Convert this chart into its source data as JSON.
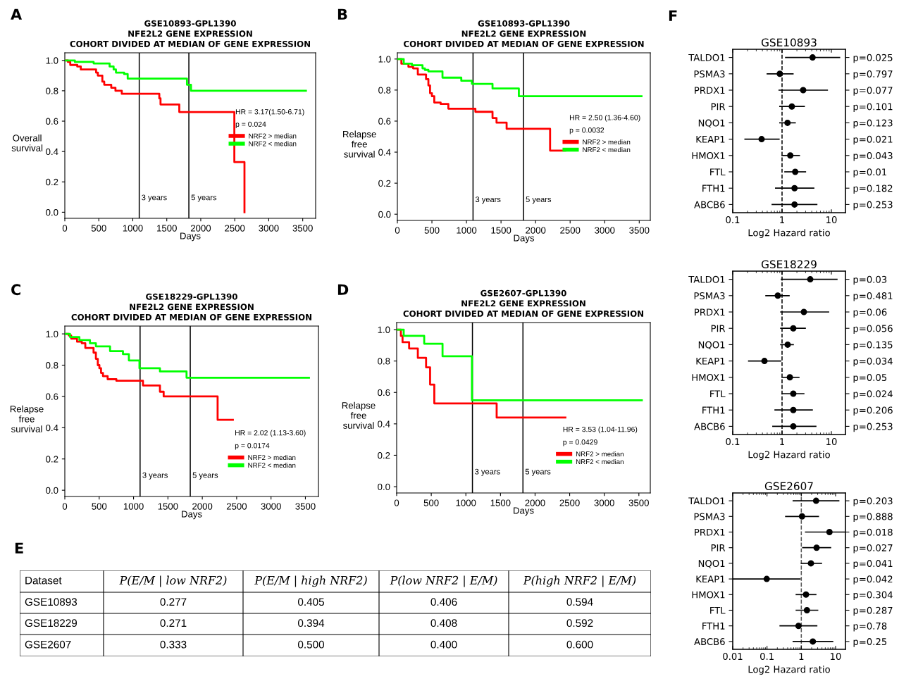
{
  "chart_data": [
    {
      "type": "step",
      "title": "GSE10893-GPL1390\nNFE2L2 GENE EXPRESSION\nCOHORT DIVIDED AT MEDIAN OF GENE EXPRESSION",
      "xlabel": "Days",
      "ylabel": "Overall\nsurvival",
      "annotations": [
        "A",
        "HR = 3.17(1.50-6.71)",
        "p = 0.024"
      ],
      "series": [
        {
          "name": "NRF2 > median",
          "color": "#ff0000",
          "x": [
            0,
            45,
            80,
            183,
            235,
            460,
            486,
            552,
            580,
            683,
            745,
            838,
            1390,
            1408,
            1684,
            2494,
            2643
          ],
          "values": [
            1.0,
            0.99,
            0.97,
            0.96,
            0.94,
            0.92,
            0.9,
            0.86,
            0.84,
            0.82,
            0.8,
            0.78,
            0.75,
            0.71,
            0.66,
            0.33,
            0.0
          ]
        },
        {
          "name": "NRF2 < median",
          "color": "#00ff00",
          "x": [
            0,
            148,
            424,
            659,
            718,
            752,
            873,
            925,
            1797,
            1856,
            3547
          ],
          "values": [
            1.0,
            0.99,
            0.98,
            0.96,
            0.94,
            0.92,
            0.91,
            0.88,
            0.84,
            0.8,
            0.8
          ]
        }
      ],
      "xlim": [
        0,
        3690
      ],
      "xticks": [
        0,
        500,
        1000,
        1500,
        2000,
        2500,
        3000,
        3500
      ],
      "ylim": [
        -0.04,
        1.05
      ],
      "yticks": [
        {
          "value": 0,
          "label": "0.0"
        },
        {
          "value": 0.2,
          "label": "0.2"
        },
        {
          "value": 0.4,
          "label": "0.4"
        },
        {
          "value": 0.6,
          "label": "0.6"
        },
        {
          "value": 0.8,
          "label": "0.8"
        },
        {
          "value": 1,
          "label": "1.0"
        }
      ],
      "ref_lines": [
        {
          "axis": "x",
          "value": 1095,
          "label": "3 years",
          "color": "#000000"
        },
        {
          "axis": "x",
          "value": 1825,
          "label": "5 years",
          "color": "#000000"
        }
      ],
      "legend": "right",
      "grid": false
    },
    {
      "type": "step",
      "title": "GSE10893-GPL1390\nNFE2L2 GENE EXPRESSION\nCOHORT DIVIDED AT MEDIAN OF GENE EXPRESSION",
      "xlabel": "Days",
      "ylabel": "Relapse\nfree\nsurvival",
      "annotations": [
        "B",
        "HR = 2.50 (1.36-4.60)",
        "p = 0.0032"
      ],
      "series": [
        {
          "name": "NRF2 > median",
          "color": "#ff0000",
          "x": [
            0,
            58,
            160,
            228,
            296,
            415,
            449,
            473,
            500,
            534,
            626,
            738,
            1129,
            1377,
            1435,
            1581,
            2210,
            2428
          ],
          "values": [
            1.0,
            0.97,
            0.95,
            0.94,
            0.9,
            0.87,
            0.83,
            0.78,
            0.76,
            0.72,
            0.71,
            0.68,
            0.66,
            0.62,
            0.59,
            0.55,
            0.41,
            0.41
          ]
        },
        {
          "name": "NRF2 < median",
          "color": "#00ff00",
          "x": [
            0,
            92,
            211,
            364,
            398,
            449,
            653,
            925,
            1078,
            1377,
            1758,
            3533
          ],
          "values": [
            1.0,
            0.97,
            0.96,
            0.94,
            0.93,
            0.92,
            0.88,
            0.86,
            0.84,
            0.81,
            0.76,
            0.76
          ]
        }
      ],
      "xlim": [
        0,
        3660
      ],
      "xticks": [
        0,
        500,
        1000,
        1500,
        2000,
        2500,
        3000,
        3500
      ],
      "ylim": [
        -0.04,
        1.04
      ],
      "yticks": [
        {
          "value": 0,
          "label": "0.0"
        },
        {
          "value": 0.2,
          "label": "0.2"
        },
        {
          "value": 0.4,
          "label": "0.4"
        },
        {
          "value": 0.6,
          "label": "0.6"
        },
        {
          "value": 0.8,
          "label": "0.8"
        },
        {
          "value": 1,
          "label": "1.0"
        }
      ],
      "ref_lines": [
        {
          "axis": "x",
          "value": 1095,
          "label": "3 years",
          "color": "#000000"
        },
        {
          "axis": "x",
          "value": 1825,
          "label": "5 years",
          "color": "#000000"
        }
      ],
      "legend": "right",
      "grid": false
    },
    {
      "type": "step",
      "title": "GSE18229-GPL1390\nNFE2L2 GENE EXPRESSION\nCOHORT DIVIDED AT MEDIAN OF GENE EXPRESSION",
      "xlabel": "Days",
      "ylabel": "Relapse\nfree\nsurvival",
      "annotations": [
        "C",
        "HR = 2.02 (1.13-3.60)",
        "p = 0.0174"
      ],
      "series": [
        {
          "name": "NRF2 > median",
          "color": "#ff0000",
          "x": [
            0,
            58,
            92,
            178,
            247,
            298,
            418,
            452,
            480,
            503,
            527,
            555,
            623,
            750,
            1137,
            1384,
            1438,
            2223,
            2445
          ],
          "values": [
            1.0,
            0.99,
            0.97,
            0.95,
            0.94,
            0.91,
            0.88,
            0.84,
            0.8,
            0.78,
            0.75,
            0.73,
            0.71,
            0.7,
            0.67,
            0.63,
            0.6,
            0.45,
            0.45
          ]
        },
        {
          "name": "NRF2 < median",
          "color": "#00ff00",
          "x": [
            0,
            75,
            212,
            366,
            452,
            658,
            846,
            932,
            1086,
            1384,
            1771,
            3552
          ],
          "values": [
            1.0,
            0.98,
            0.96,
            0.94,
            0.92,
            0.89,
            0.87,
            0.83,
            0.78,
            0.76,
            0.72,
            0.72
          ]
        }
      ],
      "xlim": [
        0,
        3690
      ],
      "xticks": [
        0,
        500,
        1000,
        1500,
        2000,
        2500,
        3000,
        3500
      ],
      "ylim": [
        -0.04,
        1.05
      ],
      "yticks": [
        {
          "value": 0,
          "label": "0.0"
        },
        {
          "value": 0.2,
          "label": "0.2"
        },
        {
          "value": 0.4,
          "label": "0.4"
        },
        {
          "value": 0.6,
          "label": "0.6"
        },
        {
          "value": 0.8,
          "label": "0.8"
        },
        {
          "value": 1,
          "label": "1.0"
        }
      ],
      "ref_lines": [
        {
          "axis": "x",
          "value": 1095,
          "label": "3 years",
          "color": "#000000"
        },
        {
          "axis": "x",
          "value": 1825,
          "label": "5 years",
          "color": "#000000"
        }
      ],
      "legend": "right",
      "grid": false
    },
    {
      "type": "step",
      "title": "GSE2607-GPL1390\nNFE2L2 GENE EXPRESSION\nCOHORT DIVIDED AT MEDIAN OF GENE EXPRESSION",
      "xlabel": "Days",
      "ylabel": "Relapse\nfree\nsurvival",
      "annotations": [
        "D",
        "HR = 3.53 (1.04-11.96)",
        "p = 0.0429"
      ],
      "series": [
        {
          "name": "NRF2 > median",
          "color": "#ff0000",
          "x": [
            0,
            61,
            85,
            180,
            306,
            425,
            483,
            544,
            1445,
            2438
          ],
          "values": [
            1.0,
            0.96,
            0.92,
            0.88,
            0.82,
            0.76,
            0.65,
            0.53,
            0.44,
            0.44
          ]
        },
        {
          "name": "NRF2 < median",
          "color": "#00ff00",
          "x": [
            0,
            102,
            398,
            663,
            1088,
            3543
          ],
          "values": [
            1.0,
            0.96,
            0.91,
            0.83,
            0.55,
            0.55
          ]
        }
      ],
      "xlim": [
        0,
        3665
      ],
      "xticks": [
        0,
        500,
        1000,
        1500,
        2000,
        2500,
        3000,
        3500
      ],
      "ylim": [
        -0.04,
        1.045
      ],
      "yticks": [
        {
          "value": 0,
          "label": "0.0"
        },
        {
          "value": 0.2,
          "label": "0.2"
        },
        {
          "value": 0.4,
          "label": "0.4"
        },
        {
          "value": 0.6,
          "label": "0.6"
        },
        {
          "value": 0.8,
          "label": "0.8"
        },
        {
          "value": 1,
          "label": "1.0"
        }
      ],
      "ref_lines": [
        {
          "axis": "x",
          "value": 1095,
          "label": "3 years",
          "color": "#000000"
        },
        {
          "axis": "x",
          "value": 1825,
          "label": "5 years",
          "color": "#000000"
        }
      ],
      "legend": "right",
      "grid": false
    },
    {
      "type": "heatmap",
      "annotations": [
        "E",
        "Dataset"
      ],
      "data_labels": true,
      "categories": [
        "P(E/M | low NRF2)",
        "P(E/M | high NRF2)",
        "P(low NRF2 | E/M)",
        "P(high NRF2 | E/M)"
      ],
      "y_categories": [
        "GSE10893",
        "GSE18229",
        "GSE2607"
      ],
      "cells": [
        [
          0.277,
          0.405,
          0.406,
          0.594
        ],
        [
          0.271,
          0.394,
          0.408,
          0.592
        ],
        [
          0.333,
          0.5,
          0.4,
          0.6
        ]
      ],
      "cell_labels": [
        [
          "0.277",
          "0.405",
          "0.406",
          "0.594"
        ],
        [
          "0.271",
          "0.394",
          "0.408",
          "0.592"
        ],
        [
          "0.333",
          "0.500",
          "0.400",
          "0.600"
        ]
      ]
    },
    {
      "type": "scatter",
      "orientation": "horizontal",
      "title": "GSE10893",
      "xlabel": "Log2 Hazard ratio",
      "annotations": [
        "F"
      ],
      "log": "x",
      "marker": "circle",
      "categories": [
        "TALDO1",
        "PSMA3",
        "PRDX1",
        "PIR",
        "NQO1",
        "KEAP1",
        "HMOX1",
        "FTL",
        "FTH1",
        "ABCB6"
      ],
      "y2_categories": [
        "p=0.025",
        "p=0.797",
        "p=0.077",
        "p=0.101",
        "p=0.123",
        "p=0.021",
        "p=0.043",
        "p=0.01",
        "p=0.182",
        "p=0.253"
      ],
      "series": [
        {
          "color": "#000000",
          "values": [
            4.16,
            0.9,
            2.68,
            1.58,
            1.29,
            0.385,
            1.47,
            1.85,
            1.79,
            1.79
          ],
          "errors": [
            [
              1.18,
              14.7
            ],
            [
              0.5,
              1.67
            ],
            [
              0.87,
              8.3
            ],
            [
              0.9,
              2.83
            ],
            [
              0.9,
              1.85
            ],
            [
              0.177,
              0.87
            ],
            [
              1.0,
              2.25
            ],
            [
              1.14,
              2.99
            ],
            [
              0.74,
              4.4
            ],
            [
              0.63,
              5.07
            ]
          ]
        }
      ],
      "xlim": [
        0.1,
        19.3
      ],
      "xticks": [
        0.1,
        1,
        10
      ],
      "ref_lines": [
        {
          "axis": "x",
          "value": 1,
          "color": "#000000",
          "line_style": "dashed"
        }
      ],
      "grid": false
    },
    {
      "type": "scatter",
      "orientation": "horizontal",
      "title": "GSE18229",
      "xlabel": "Log2 Hazard ratio",
      "log": "x",
      "marker": "circle",
      "categories": [
        "TALDO1",
        "PSMA3",
        "PRDX1",
        "PIR",
        "NQO1",
        "KEAP1",
        "HMOX1",
        "FTL",
        "FTH1",
        "ABCB6"
      ],
      "y2_categories": [
        "p=0.03",
        "p=0.481",
        "p=0.06",
        "p=0.056",
        "p=0.135",
        "p=0.034",
        "p=0.05",
        "p=0.024",
        "p=0.206",
        "p=0.253"
      ],
      "series": [
        {
          "color": "#000000",
          "values": [
            3.73,
            0.82,
            2.77,
            1.69,
            1.3,
            0.44,
            1.44,
            1.69,
            1.69,
            1.69
          ],
          "errors": [
            [
              0.97,
              13.0
            ],
            [
              0.47,
              1.39
            ],
            [
              0.94,
              8.8
            ],
            [
              0.94,
              2.96
            ],
            [
              0.94,
              1.69
            ],
            [
              0.21,
              0.94
            ],
            [
              1.0,
              2.2
            ],
            [
              1.0,
              2.77
            ],
            [
              0.72,
              4.1
            ],
            [
              0.65,
              4.85
            ]
          ]
        }
      ],
      "xlim": [
        0.1,
        19.3
      ],
      "xticks": [
        0.1,
        1,
        10
      ],
      "ref_lines": [
        {
          "axis": "x",
          "value": 1,
          "color": "#000000",
          "line_style": "dashed"
        }
      ],
      "grid": false
    },
    {
      "type": "scatter",
      "orientation": "horizontal",
      "title": "GSE2607",
      "xlabel": "Log2 Hazard ratio",
      "log": "x",
      "marker": "circle",
      "categories": [
        "TALDO1",
        "PSMA3",
        "PRDX1",
        "PIR",
        "NQO1",
        "KEAP1",
        "HMOX1",
        "FTL",
        "FTH1",
        "ABCB6"
      ],
      "y2_categories": [
        "p=0.203",
        "p=0.888",
        "p=0.018",
        "p=0.027",
        "p=0.041",
        "p=0.042",
        "p=0.304",
        "p=0.287",
        "p=0.78",
        "p=0.25"
      ],
      "series": [
        {
          "color": "#000000",
          "values": [
            2.7,
            1.05,
            6.63,
            2.79,
            1.91,
            0.098,
            1.37,
            1.46,
            0.83,
            2.17
          ],
          "errors": [
            [
              0.58,
              12.4
            ],
            [
              0.35,
              3.16
            ],
            [
              1.33,
              19.0
            ],
            [
              1.1,
              7.16
            ],
            [
              1.0,
              3.88
            ],
            [
              0.01,
              0.92
            ],
            [
              0.71,
              2.66
            ],
            [
              0.71,
              3.01
            ],
            [
              0.24,
              2.83
            ],
            [
              0.58,
              8.25
            ]
          ]
        }
      ],
      "xlim": [
        0.01,
        19.4
      ],
      "xticks": [
        0.01,
        0.1,
        1,
        10
      ],
      "ref_lines": [
        {
          "axis": "x",
          "value": 1,
          "color": "#555555",
          "line_style": "dashed"
        }
      ],
      "grid": false
    }
  ]
}
